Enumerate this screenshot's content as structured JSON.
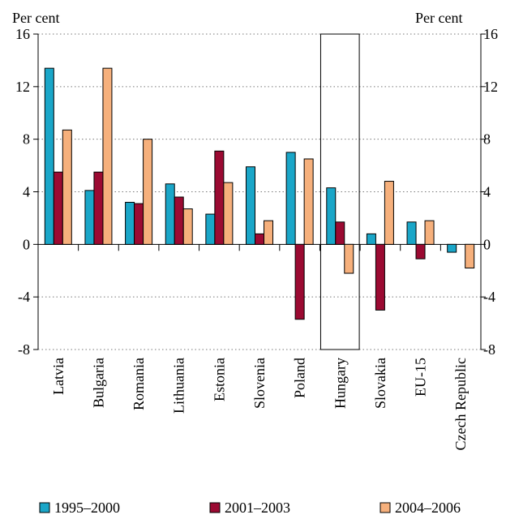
{
  "chart_data": {
    "type": "bar",
    "title": "",
    "ylabel_left": "Per cent",
    "ylabel_right": "Per cent",
    "ylim": [
      -8,
      16
    ],
    "yticks": [
      -8,
      -4,
      0,
      4,
      8,
      12,
      16
    ],
    "ytick_labels": [
      "-8",
      "-4",
      "0",
      "4",
      "8",
      "12",
      "16"
    ],
    "grid": "horizontal dotted",
    "categories": [
      "Latvia",
      "Bulgaria",
      "Romania",
      "Lithuania",
      "Estonia",
      "Slovenia",
      "Poland",
      "Hungary",
      "Slovakia",
      "EU-15",
      "Czech Republic"
    ],
    "highlighted_category": "Hungary",
    "series": [
      {
        "name": "1995–2000",
        "color": "#1aa6c8",
        "values": [
          13.4,
          4.1,
          3.2,
          4.6,
          2.3,
          5.9,
          7.0,
          4.3,
          0.8,
          1.7,
          -0.6
        ]
      },
      {
        "name": "2001–2003",
        "color": "#9b0a32",
        "values": [
          5.5,
          5.5,
          3.1,
          3.6,
          7.1,
          0.8,
          -5.7,
          1.7,
          -5.0,
          -1.1,
          0.0
        ]
      },
      {
        "name": "2004–2006",
        "color": "#f6b07c",
        "values": [
          8.7,
          13.4,
          8.0,
          2.7,
          4.7,
          1.8,
          6.5,
          -2.2,
          4.8,
          1.8,
          -1.8
        ]
      }
    ],
    "legend_position": "bottom"
  }
}
